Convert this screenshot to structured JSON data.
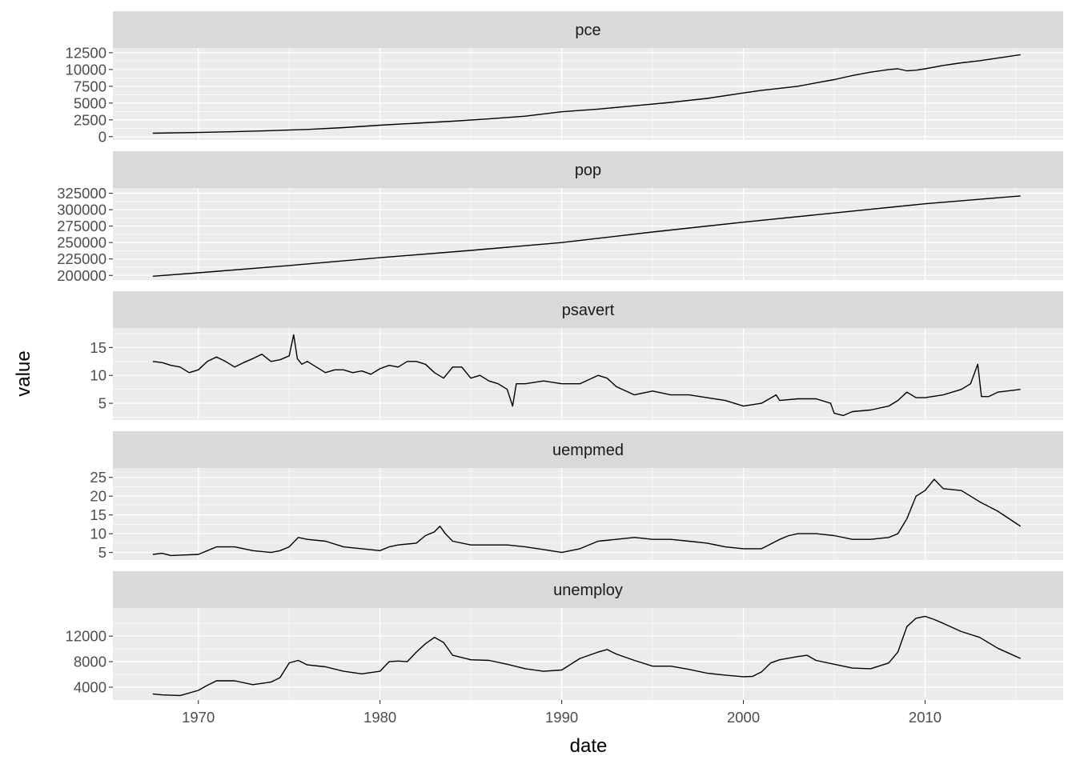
{
  "chart_data": {
    "type": "line",
    "facet": "rows",
    "scales": "free_y",
    "xlabel": "date",
    "ylabel": "value",
    "xlim": [
      1965.3,
      2017.6
    ],
    "x_ticks": [
      1970,
      1980,
      1990,
      2000,
      2010
    ],
    "grid": true,
    "colors": {
      "panel": "#ebebeb",
      "strip": "#d9d9d9",
      "grid": "#ffffff",
      "line": "#000000",
      "tick_text": "#4d4d4d"
    },
    "panels": [
      {
        "name": "pce",
        "ylim": [
          -500,
          13200
        ],
        "y_ticks": [
          0,
          2500,
          5000,
          7500,
          10000,
          12500
        ],
        "y_tick_labels": [
          "0",
          "2500",
          "5000",
          "7500",
          "10000",
          "12500"
        ],
        "x": [
          1967.5,
          1970,
          1972,
          1974,
          1976,
          1978,
          1980,
          1982,
          1984,
          1986,
          1988,
          1990,
          1992,
          1994,
          1996,
          1998,
          2000,
          2001,
          2002,
          2003,
          2004,
          2005,
          2006,
          2007,
          2008,
          2008.5,
          2009,
          2009.5,
          2010,
          2011,
          2012,
          2013,
          2014,
          2015.25
        ],
        "values": [
          507,
          620,
          740,
          890,
          1070,
          1350,
          1700,
          2000,
          2300,
          2650,
          3050,
          3700,
          4100,
          4600,
          5100,
          5700,
          6500,
          6900,
          7200,
          7500,
          8000,
          8500,
          9100,
          9600,
          10000,
          10100,
          9800,
          9900,
          10100,
          10600,
          11000,
          11300,
          11700,
          12200
        ]
      },
      {
        "name": "pop",
        "ylim": [
          193000,
          333000
        ],
        "y_ticks": [
          200000,
          225000,
          250000,
          275000,
          300000,
          325000
        ],
        "y_tick_labels": [
          "200000",
          "225000",
          "250000",
          "275000",
          "300000",
          "325000"
        ],
        "x": [
          1967.5,
          1970,
          1975,
          1980,
          1985,
          1990,
          1995,
          2000,
          2005,
          2010,
          2015.25
        ],
        "values": [
          198700,
          204000,
          215000,
          227000,
          238000,
          250000,
          266000,
          281000,
          295000,
          309000,
          321000
        ]
      },
      {
        "name": "psavert",
        "ylim": [
          2,
          18.5
        ],
        "y_ticks": [
          5,
          10,
          15
        ],
        "y_tick_labels": [
          "5",
          "10",
          "15"
        ],
        "x": [
          1967.5,
          1968,
          1968.5,
          1969,
          1969.5,
          1970,
          1970.5,
          1971,
          1971.5,
          1972,
          1972.5,
          1973,
          1973.5,
          1974,
          1974.5,
          1975,
          1975.25,
          1975.45,
          1975.7,
          1976,
          1976.5,
          1977,
          1977.5,
          1978,
          1978.5,
          1979,
          1979.5,
          1980,
          1980.5,
          1981,
          1981.5,
          1982,
          1982.5,
          1983,
          1983.5,
          1984,
          1984.5,
          1985,
          1985.5,
          1986,
          1986.5,
          1987,
          1987.3,
          1987.5,
          1988,
          1989,
          1990,
          1991,
          1992,
          1992.5,
          1993,
          1994,
          1995,
          1996,
          1997,
          1998,
          1999,
          2000,
          2001,
          2001.8,
          2002,
          2003,
          2004,
          2004.8,
          2005,
          2005.5,
          2006,
          2007,
          2008,
          2008.5,
          2009,
          2009.5,
          2010,
          2011,
          2012,
          2012.5,
          2012.9,
          2013.1,
          2013.5,
          2014,
          2015.25
        ],
        "values": [
          12.5,
          12.3,
          11.8,
          11.5,
          10.5,
          11.0,
          12.5,
          13.3,
          12.5,
          11.5,
          12.3,
          13.0,
          13.8,
          12.5,
          12.8,
          13.5,
          17.3,
          13.0,
          12.0,
          12.5,
          11.5,
          10.5,
          11.0,
          11.0,
          10.5,
          10.8,
          10.2,
          11.2,
          11.8,
          11.5,
          12.5,
          12.5,
          12.0,
          10.5,
          9.5,
          11.5,
          11.5,
          9.5,
          10.0,
          9.0,
          8.5,
          7.5,
          4.5,
          8.5,
          8.5,
          9.0,
          8.5,
          8.5,
          10.0,
          9.5,
          8.0,
          6.5,
          7.2,
          6.5,
          6.5,
          6.0,
          5.5,
          4.5,
          5.0,
          6.5,
          5.5,
          5.8,
          5.8,
          5.0,
          3.2,
          2.8,
          3.5,
          3.8,
          4.5,
          5.5,
          7.0,
          6.0,
          6.0,
          6.5,
          7.5,
          8.5,
          12.0,
          6.2,
          6.2,
          7.0,
          7.5
        ]
      },
      {
        "name": "uempmed",
        "ylim": [
          3,
          27.5
        ],
        "y_ticks": [
          5,
          10,
          15,
          20,
          25
        ],
        "y_tick_labels": [
          "5",
          "10",
          "15",
          "20",
          "25"
        ],
        "x": [
          1967.5,
          1968,
          1968.5,
          1969,
          1970,
          1970.5,
          1971,
          1972,
          1973,
          1974,
          1974.5,
          1975,
          1975.5,
          1976,
          1977,
          1978,
          1979,
          1980,
          1980.5,
          1981,
          1982,
          1982.5,
          1983,
          1983.3,
          1983.6,
          1984,
          1985,
          1986,
          1987,
          1988,
          1989,
          1990,
          1991,
          1992,
          1993,
          1994,
          1995,
          1996,
          1997,
          1998,
          1999,
          2000,
          2001,
          2002,
          2002.5,
          2003,
          2004,
          2005,
          2006,
          2007,
          2008,
          2008.5,
          2009,
          2009.5,
          2010,
          2010.5,
          2011,
          2012,
          2013,
          2014,
          2015.25
        ],
        "values": [
          4.5,
          4.8,
          4.2,
          4.3,
          4.5,
          5.5,
          6.5,
          6.5,
          5.5,
          5.0,
          5.5,
          6.5,
          9.0,
          8.5,
          8.0,
          6.5,
          6.0,
          5.5,
          6.5,
          7.0,
          7.5,
          9.5,
          10.5,
          12.0,
          10.0,
          8.0,
          7.0,
          7.0,
          7.0,
          6.5,
          5.8,
          5.0,
          6.0,
          8.0,
          8.5,
          9.0,
          8.5,
          8.5,
          8.0,
          7.5,
          6.5,
          6.0,
          6.0,
          8.5,
          9.5,
          10.0,
          10.0,
          9.5,
          8.5,
          8.5,
          9.0,
          10.0,
          14.0,
          20.0,
          21.5,
          24.5,
          22.0,
          21.5,
          18.5,
          16.0,
          12.0
        ]
      },
      {
        "name": "unemploy",
        "ylim": [
          2000,
          16400
        ],
        "y_ticks": [
          4000,
          8000,
          12000
        ],
        "y_tick_labels": [
          "4000",
          "8000",
          "12000"
        ],
        "x": [
          1967.5,
          1968,
          1969,
          1970,
          1970.5,
          1971,
          1972,
          1973,
          1974,
          1974.5,
          1975,
          1975.5,
          1976,
          1977,
          1978,
          1979,
          1980,
          1980.5,
          1981,
          1981.5,
          1982,
          1982.5,
          1983,
          1983.5,
          1984,
          1985,
          1986,
          1987,
          1988,
          1989,
          1990,
          1991,
          1992,
          1992.5,
          1993,
          1994,
          1995,
          1996,
          1997,
          1998,
          1999,
          2000,
          2000.5,
          2001,
          2001.5,
          2002,
          2003,
          2003.5,
          2004,
          2005,
          2006,
          2007,
          2008,
          2008.5,
          2009,
          2009.5,
          2010,
          2010.5,
          2011,
          2012,
          2013,
          2014,
          2015.25
        ],
        "values": [
          2950,
          2800,
          2700,
          3500,
          4300,
          5000,
          5000,
          4400,
          4800,
          5500,
          7800,
          8200,
          7500,
          7200,
          6500,
          6100,
          6500,
          8000,
          8100,
          8000,
          9500,
          10800,
          11800,
          11000,
          9000,
          8300,
          8200,
          7600,
          6900,
          6500,
          6700,
          8500,
          9500,
          9900,
          9200,
          8200,
          7300,
          7300,
          6800,
          6200,
          5900,
          5650,
          5700,
          6400,
          7800,
          8300,
          8800,
          9000,
          8200,
          7600,
          7000,
          6900,
          7800,
          9500,
          13500,
          14800,
          15100,
          14600,
          14000,
          12700,
          11800,
          10100,
          8500
        ]
      }
    ]
  }
}
